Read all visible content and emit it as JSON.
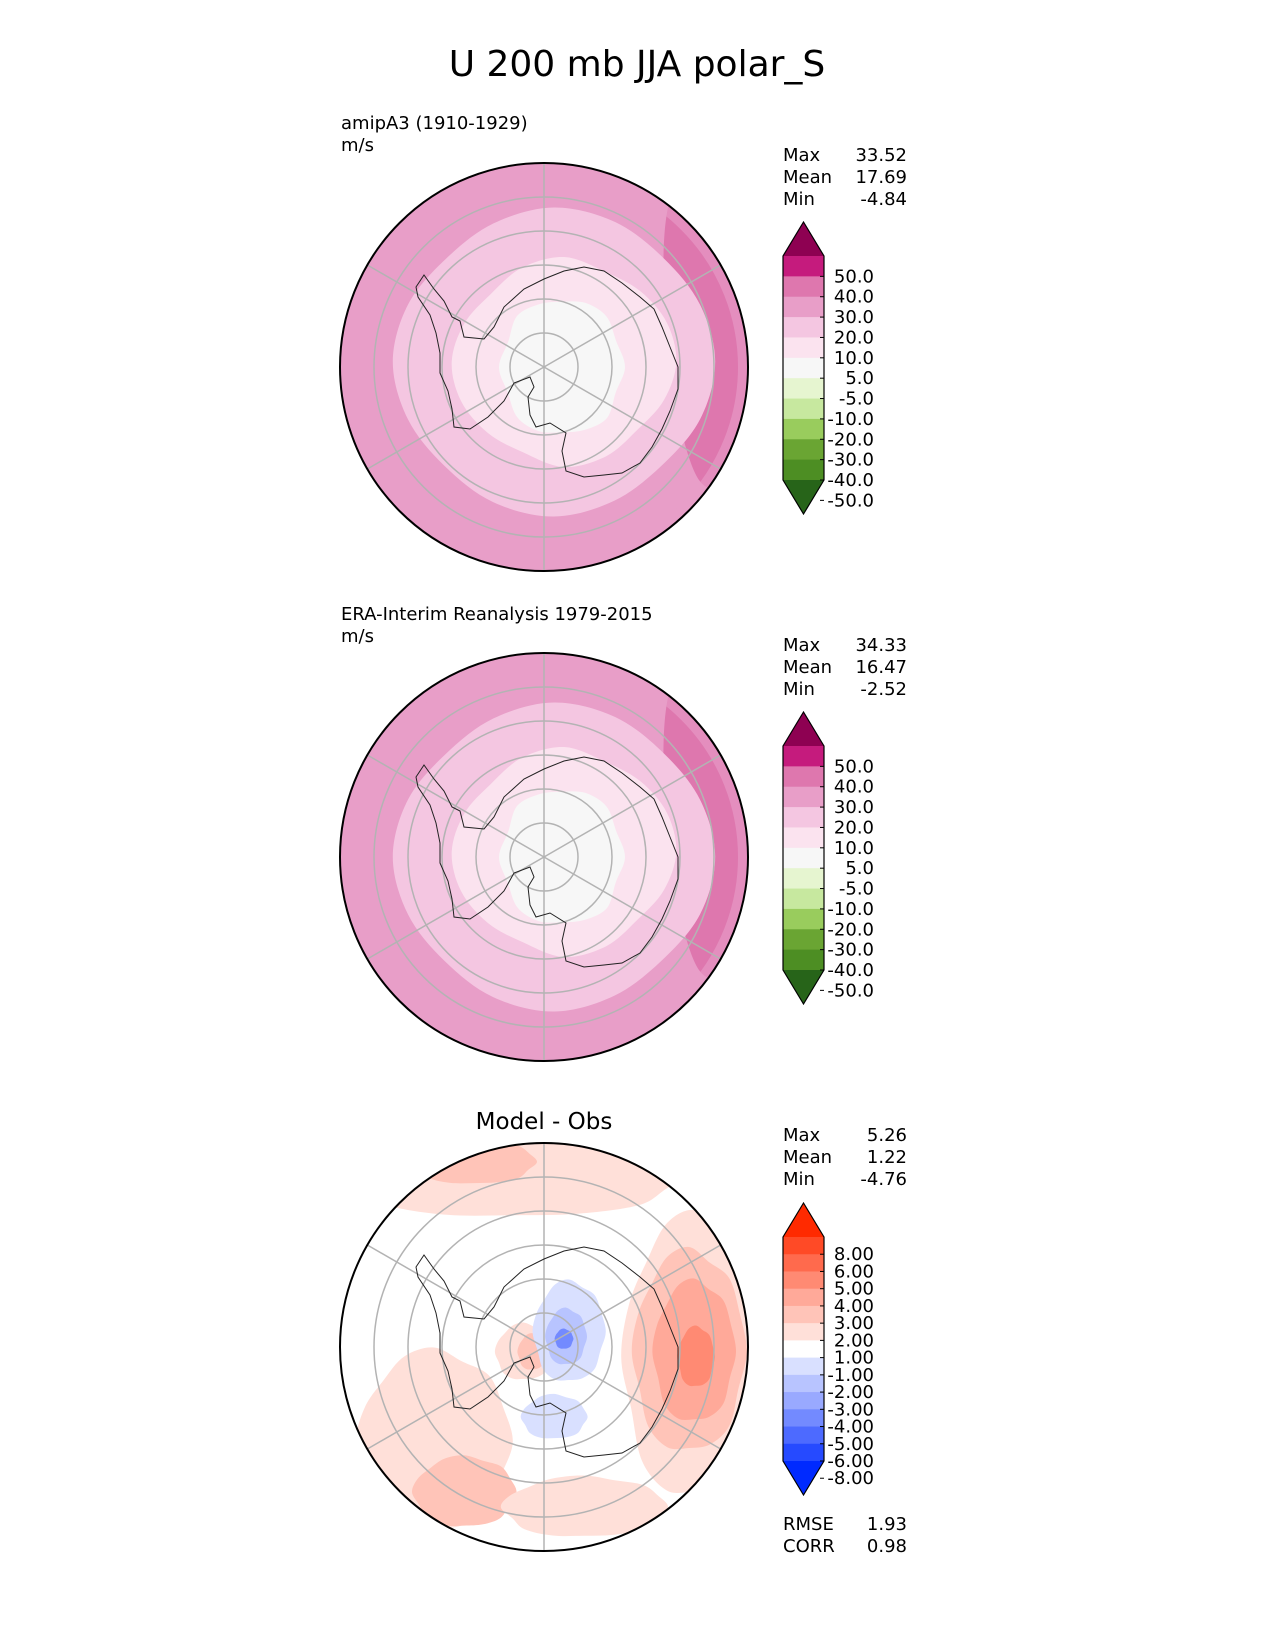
{
  "title": "U 200 mb JJA polar_S",
  "chart_data": [
    {
      "type": "heatmap",
      "projection": "south-polar-stereographic",
      "title": "amipA3 (1910-1929)",
      "units": "m/s",
      "field": "model",
      "stats": [
        {
          "label": "Max",
          "value": "33.52"
        },
        {
          "label": "Mean",
          "value": "17.69"
        },
        {
          "label": "Min",
          "value": "-4.84"
        }
      ],
      "colorbar": {
        "levels": [
          "50.0",
          "40.0",
          "30.0",
          "20.0",
          "10.0",
          "5.0",
          "-5.0",
          "-10.0",
          "-20.0",
          "-30.0",
          "-40.0",
          "-50.0"
        ],
        "colors": [
          "#8e0152",
          "#c51b7d",
          "#de77ae",
          "#e89ec8",
          "#f4c6e1",
          "#fbe3ef",
          "#f7f7f7",
          "#e6f5d0",
          "#c7e89f",
          "#99cc5d",
          "#6aa533",
          "#4d8e23",
          "#276419"
        ],
        "extend": "both"
      },
      "field_colors": {
        "outer": "#e89ec8",
        "ring": "#f4c6e1",
        "inner": "#fbe3ef",
        "core": "#f7f7f7",
        "jet": "#de77ae"
      }
    },
    {
      "type": "heatmap",
      "projection": "south-polar-stereographic",
      "title": "ERA-Interim Reanalysis 1979-2015",
      "units": "m/s",
      "field": "obs",
      "stats": [
        {
          "label": "Max",
          "value": "34.33"
        },
        {
          "label": "Mean",
          "value": "16.47"
        },
        {
          "label": "Min",
          "value": "-2.52"
        }
      ],
      "colorbar": {
        "levels": [
          "50.0",
          "40.0",
          "30.0",
          "20.0",
          "10.0",
          "5.0",
          "-5.0",
          "-10.0",
          "-20.0",
          "-30.0",
          "-40.0",
          "-50.0"
        ],
        "colors": [
          "#8e0152",
          "#c51b7d",
          "#de77ae",
          "#e89ec8",
          "#f4c6e1",
          "#fbe3ef",
          "#f7f7f7",
          "#e6f5d0",
          "#c7e89f",
          "#99cc5d",
          "#6aa533",
          "#4d8e23",
          "#276419"
        ],
        "extend": "both"
      },
      "field_colors": {
        "outer": "#e89ec8",
        "ring": "#f4c6e1",
        "inner": "#fbe3ef",
        "core": "#f7f7f7",
        "jet": "#de77ae"
      }
    },
    {
      "type": "heatmap",
      "projection": "south-polar-stereographic",
      "title": "Model - Obs",
      "units": "",
      "field": "diff",
      "stats": [
        {
          "label": "Max",
          "value": "5.26"
        },
        {
          "label": "Mean",
          "value": "1.22"
        },
        {
          "label": "Min",
          "value": "-4.76"
        }
      ],
      "colorbar": {
        "levels": [
          "8.00",
          "6.00",
          "5.00",
          "4.00",
          "3.00",
          "2.00",
          "1.00",
          "-1.00",
          "-2.00",
          "-3.00",
          "-4.00",
          "-5.00",
          "-6.00",
          "-8.00"
        ],
        "colors": [
          "#ff2a00",
          "#ff4a26",
          "#ff6a4d",
          "#ff8a73",
          "#ffa999",
          "#ffc4b8",
          "#ffe0d9",
          "#ffffff",
          "#d9e0ff",
          "#b8c4ff",
          "#99a9ff",
          "#738aff",
          "#4d6aff",
          "#264aff",
          "#002aff"
        ],
        "extend": "both"
      },
      "metrics": [
        {
          "label": "RMSE",
          "value": "1.93"
        },
        {
          "label": "CORR",
          "value": "0.98"
        }
      ]
    }
  ]
}
